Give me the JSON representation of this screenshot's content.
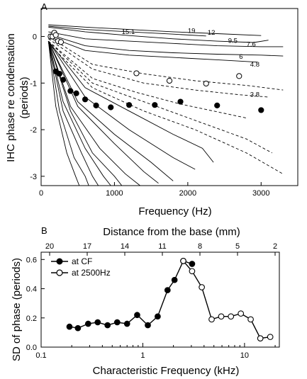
{
  "chart_data": [
    {
      "panel": "A",
      "type": "line",
      "xlabel": "Frequency (Hz)",
      "ylabel": "IHC phase re condensation (periods)",
      "xlim": [
        0,
        3500
      ],
      "ylim": [
        -3.2,
        0.6
      ],
      "xticks": [
        0,
        1000,
        2000,
        3000
      ],
      "xtick_labels": [
        "0",
        "1000",
        "2000",
        "3000"
      ],
      "yticks": [
        0,
        -1,
        -2,
        -3
      ],
      "ytick_labels": [
        "0",
        "-1",
        "-2",
        "-3"
      ],
      "grid": false,
      "cf_labels": [
        {
          "text": "19",
          "x": 2000,
          "y": 0.12
        },
        {
          "text": "15.1",
          "x": 1100,
          "y": 0.1
        },
        {
          "text": "12",
          "x": 2270,
          "y": 0.08
        },
        {
          "text": "9.5",
          "x": 2550,
          "y": -0.09
        },
        {
          "text": "7.6",
          "x": 2800,
          "y": -0.17
        },
        {
          "text": "6",
          "x": 2700,
          "y": -0.43
        },
        {
          "text": "4.8",
          "x": 2850,
          "y": -0.6
        },
        {
          "text": "3.8",
          "x": 2850,
          "y": -1.25
        }
      ],
      "series": [
        {
          "style": "solid",
          "x": [
            100,
            600,
            1200,
            1800,
            2400,
            3000
          ],
          "values": [
            0.25,
            0.2,
            0.15,
            0.1,
            0.06,
            0.02
          ]
        },
        {
          "style": "solid",
          "x": [
            100,
            600,
            1200,
            1800,
            2250
          ],
          "values": [
            0.22,
            0.15,
            0.1,
            0.05,
            0.01
          ]
        },
        {
          "style": "solid",
          "x": [
            100,
            600,
            1200,
            1800,
            2400,
            2900,
            3100
          ],
          "values": [
            0.2,
            0.1,
            0.02,
            -0.05,
            -0.1,
            -0.13,
            -0.08
          ]
        },
        {
          "style": "solid",
          "x": [
            100,
            600,
            1200,
            1800,
            2400,
            3000,
            3300
          ],
          "values": [
            0.1,
            -0.05,
            -0.1,
            -0.15,
            -0.2,
            -0.22,
            -0.22
          ]
        },
        {
          "style": "solid",
          "x": [
            100,
            600,
            1200,
            1800,
            2400,
            3000,
            3300
          ],
          "values": [
            0.05,
            -0.2,
            -0.3,
            -0.35,
            -0.38,
            -0.4,
            -0.42
          ]
        },
        {
          "style": "solid",
          "x": [
            100,
            600,
            1200,
            1800,
            2400,
            2950
          ],
          "values": [
            0.0,
            -0.3,
            -0.4,
            -0.45,
            -0.5,
            -0.55
          ]
        },
        {
          "style": "dashed",
          "x": [
            100,
            700,
            1400,
            2100,
            2800,
            3300
          ],
          "values": [
            0.0,
            -0.6,
            -0.8,
            -0.95,
            -1.05,
            -1.15
          ]
        },
        {
          "style": "dashed",
          "x": [
            100,
            700,
            1400,
            2100,
            2700,
            3100
          ],
          "values": [
            -0.05,
            -0.7,
            -1.0,
            -1.15,
            -1.25,
            -1.3
          ]
        },
        {
          "style": "dashed",
          "x": [
            100,
            700,
            1300,
            1900,
            2500,
            2800
          ],
          "values": [
            -0.1,
            -0.9,
            -1.2,
            -1.45,
            -1.65,
            -1.75
          ]
        },
        {
          "style": "dashed",
          "x": [
            100,
            700,
            1400,
            2100,
            2800,
            3150
          ],
          "values": [
            -0.1,
            -1.0,
            -1.4,
            -1.8,
            -2.2,
            -2.5
          ]
        },
        {
          "style": "dashed",
          "x": [
            100,
            700,
            1400,
            2100,
            2800,
            3300
          ],
          "values": [
            -0.15,
            -1.1,
            -1.6,
            -2.0,
            -2.5,
            -2.95
          ]
        },
        {
          "style": "solid",
          "x": [
            100,
            600,
            1200,
            1800,
            2200,
            2350
          ],
          "values": [
            -0.1,
            -1.1,
            -1.6,
            -2.1,
            -2.4,
            -2.7
          ]
        },
        {
          "style": "solid",
          "x": [
            100,
            600,
            1200,
            1800,
            2100
          ],
          "values": [
            -0.1,
            -1.3,
            -2.0,
            -2.6,
            -2.85
          ]
        },
        {
          "style": "solid",
          "x": [
            100,
            500,
            1000,
            1500,
            1800
          ],
          "values": [
            -0.1,
            -1.4,
            -2.1,
            -2.7,
            -3.1
          ]
        },
        {
          "style": "solid",
          "x": [
            100,
            500,
            1000,
            1400,
            1600
          ],
          "values": [
            -0.1,
            -1.5,
            -2.3,
            -2.9,
            -3.15
          ]
        },
        {
          "style": "solid",
          "x": [
            100,
            400,
            800,
            1150,
            1350
          ],
          "values": [
            -0.1,
            -1.5,
            -2.4,
            -2.95,
            -3.2
          ]
        },
        {
          "style": "solid",
          "x": [
            100,
            400,
            700,
            1000,
            1100
          ],
          "values": [
            -0.1,
            -1.6,
            -2.5,
            -3.0,
            -3.2
          ]
        },
        {
          "style": "solid",
          "x": [
            100,
            300,
            600,
            850,
            950
          ],
          "values": [
            -0.1,
            -1.4,
            -2.4,
            -3.0,
            -3.2
          ]
        },
        {
          "style": "solid",
          "x": [
            100,
            300,
            550,
            700,
            780
          ],
          "values": [
            -0.1,
            -1.6,
            -2.5,
            -3.0,
            -3.2
          ]
        },
        {
          "style": "solid",
          "x": [
            100,
            250,
            450,
            600,
            650
          ],
          "values": [
            -0.1,
            -1.6,
            -2.6,
            -3.0,
            -3.2
          ]
        },
        {
          "style": "solid",
          "x": [
            100,
            200,
            350,
            470,
            520
          ],
          "values": [
            -0.1,
            -1.5,
            -2.5,
            -3.0,
            -3.2
          ]
        }
      ],
      "markers": {
        "filled": {
          "x": [
            200,
            250,
            300,
            400,
            480,
            600,
            750,
            950,
            1200,
            1550,
            1900,
            2400,
            3000
          ],
          "values": [
            -0.75,
            -0.8,
            -0.93,
            -1.17,
            -1.22,
            -1.35,
            -1.48,
            -1.52,
            -1.47,
            -1.47,
            -1.4,
            -1.48,
            -1.58
          ]
        },
        "open": {
          "x": [
            130,
            155,
            180,
            200,
            230,
            270,
            1300,
            1750,
            2250,
            2700
          ],
          "values": [
            0.0,
            0.0,
            0.08,
            0.03,
            -0.1,
            -0.12,
            -0.79,
            -0.95,
            -1.01,
            -0.85
          ]
        }
      }
    },
    {
      "panel": "B",
      "type": "line",
      "xlabel": "Characteristic Frequency (kHz)",
      "top_xlabel": "Distance from the base (mm)",
      "ylabel": "SD of phase (periods)",
      "x_scale": "log",
      "xlim": [
        0.1,
        22
      ],
      "ylim": [
        0,
        0.65
      ],
      "xticks": [
        0.1,
        1,
        10
      ],
      "xtick_labels": [
        "0.1",
        "1",
        "10"
      ],
      "top_ticks": [
        20,
        17,
        14,
        11,
        8,
        5,
        2
      ],
      "yticks": [
        0,
        0.2,
        0.4,
        0.6
      ],
      "ytick_labels": [
        "0.0",
        "0.2",
        "0.4",
        "0.6"
      ],
      "grid": false,
      "legend": "top-left",
      "series": [
        {
          "name": "at CF",
          "marker": "filled",
          "x": [
            0.19,
            0.23,
            0.29,
            0.36,
            0.45,
            0.56,
            0.7,
            0.88,
            1.12,
            1.4,
            1.75,
            2.05,
            2.5,
            3.05
          ],
          "values": [
            0.14,
            0.13,
            0.16,
            0.17,
            0.15,
            0.17,
            0.16,
            0.22,
            0.15,
            0.21,
            0.39,
            0.46,
            0.59,
            0.57
          ]
        },
        {
          "name": "at 2500Hz",
          "marker": "open",
          "x": [
            2.5,
            3.05,
            3.8,
            4.75,
            5.9,
            7.35,
            9.2,
            11.5,
            14.3,
            17.9
          ],
          "values": [
            0.59,
            0.52,
            0.41,
            0.19,
            0.21,
            0.21,
            0.23,
            0.19,
            0.06,
            0.07
          ]
        }
      ]
    }
  ],
  "panel_a": {
    "letter": "A",
    "ylabel_line1": "IHC phase re condensation",
    "ylabel_line2": "(periods)",
    "xlabel": "Frequency (Hz)"
  },
  "panel_b": {
    "letter": "B",
    "top_label": "Distance from the base (mm)",
    "ylabel": "SD of phase (periods)",
    "xlabel": "Characteristic Frequency (kHz)",
    "top_tick_labels": [
      "20",
      "17",
      "14",
      "11",
      "8",
      "5",
      "2"
    ],
    "legend": {
      "filled": "at CF",
      "open": "at 2500Hz"
    }
  }
}
